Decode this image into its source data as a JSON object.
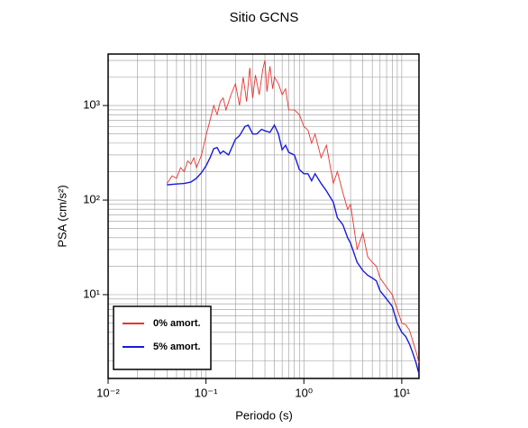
{
  "chart_data": {
    "type": "line",
    "title": "Sitio GCNS",
    "x_label": "Periodo (s)",
    "y_label": "PSA (cm/s²)",
    "log_x": true,
    "log_y": true,
    "grid": true,
    "legend_position": "lower left",
    "xlim": [
      0.01,
      15
    ],
    "ylim": [
      1.3,
      3500
    ],
    "xticks": [
      {
        "value": 0.01,
        "label": "10⁻²"
      },
      {
        "value": 0.1,
        "label": "10⁻¹"
      },
      {
        "value": 1,
        "label": "10⁰"
      },
      {
        "value": 10,
        "label": "10¹"
      }
    ],
    "yticks": [
      {
        "value": 10,
        "label": "10¹"
      },
      {
        "value": 100,
        "label": "10²"
      },
      {
        "value": 1000,
        "label": "10³"
      }
    ],
    "xgrid_minor": [
      0.02,
      0.03,
      0.04,
      0.05,
      0.06,
      0.07,
      0.08,
      0.09,
      0.2,
      0.3,
      0.4,
      0.5,
      0.6,
      0.7,
      0.8,
      0.9,
      2,
      3,
      4,
      5,
      6,
      7,
      8,
      9
    ],
    "ygrid_minor": [
      2,
      3,
      4,
      5,
      6,
      7,
      8,
      9,
      20,
      30,
      40,
      50,
      60,
      70,
      80,
      90,
      200,
      300,
      400,
      500,
      600,
      700,
      800,
      900,
      2000,
      3000
    ],
    "series": [
      {
        "name": "0% amort.",
        "color": "#e8332e",
        "x": [
          0.04,
          0.045,
          0.05,
          0.055,
          0.06,
          0.065,
          0.07,
          0.075,
          0.08,
          0.09,
          0.1,
          0.11,
          0.12,
          0.13,
          0.14,
          0.15,
          0.16,
          0.18,
          0.2,
          0.22,
          0.24,
          0.26,
          0.28,
          0.3,
          0.32,
          0.35,
          0.38,
          0.4,
          0.42,
          0.45,
          0.48,
          0.5,
          0.55,
          0.6,
          0.65,
          0.7,
          0.8,
          0.9,
          1.0,
          1.1,
          1.2,
          1.3,
          1.5,
          1.7,
          2.0,
          2.2,
          2.5,
          2.8,
          3.0,
          3.5,
          4.0,
          4.5,
          5,
          5.5,
          6,
          7,
          8,
          9,
          10,
          11,
          12,
          13,
          14,
          15
        ],
        "values": [
          150,
          180,
          170,
          220,
          200,
          260,
          240,
          280,
          220,
          300,
          480,
          700,
          1000,
          800,
          1100,
          1200,
          900,
          1300,
          1700,
          1000,
          2000,
          1100,
          2500,
          1200,
          2100,
          1300,
          2400,
          3000,
          1400,
          2600,
          1500,
          2000,
          1700,
          1300,
          1500,
          900,
          900,
          800,
          600,
          550,
          400,
          500,
          280,
          380,
          150,
          200,
          120,
          80,
          90,
          30,
          45,
          25,
          22,
          20,
          15,
          12,
          10,
          7,
          5,
          4.8,
          4.2,
          3.2,
          2.5,
          1.9
        ]
      },
      {
        "name": "5% amort.",
        "color": "#1a1adb",
        "x": [
          0.04,
          0.05,
          0.06,
          0.07,
          0.08,
          0.09,
          0.1,
          0.11,
          0.12,
          0.13,
          0.14,
          0.15,
          0.17,
          0.2,
          0.22,
          0.25,
          0.27,
          0.3,
          0.33,
          0.37,
          0.4,
          0.45,
          0.5,
          0.55,
          0.6,
          0.65,
          0.7,
          0.8,
          0.9,
          1.0,
          1.1,
          1.2,
          1.3,
          1.5,
          1.7,
          2.0,
          2.2,
          2.5,
          2.8,
          3.0,
          3.5,
          4.0,
          4.5,
          5,
          5.5,
          6,
          7,
          8,
          9,
          10,
          11,
          12,
          13,
          14,
          15
        ],
        "values": [
          145,
          148,
          150,
          155,
          170,
          195,
          230,
          280,
          350,
          360,
          310,
          330,
          300,
          440,
          480,
          600,
          620,
          500,
          500,
          560,
          540,
          520,
          620,
          500,
          340,
          380,
          320,
          300,
          210,
          190,
          190,
          160,
          190,
          150,
          125,
          95,
          65,
          55,
          40,
          35,
          22,
          18,
          16,
          15,
          14,
          11,
          9,
          7.5,
          5,
          4,
          3.6,
          3,
          2.4,
          1.9,
          1.45
        ]
      }
    ]
  }
}
